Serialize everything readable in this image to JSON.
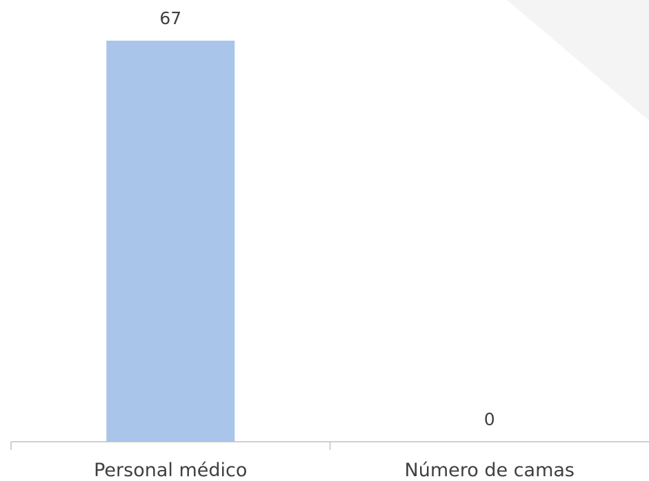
{
  "chart_data": {
    "type": "bar",
    "categories": [
      "Personal médico",
      "Número de camas"
    ],
    "values": [
      67,
      0
    ],
    "data_labels": [
      "67",
      "0"
    ],
    "title": "",
    "xlabel": "",
    "ylabel": "",
    "ylim": [
      0,
      67
    ],
    "grid": false,
    "legend": "none",
    "colors": {
      "bar": "#aac5ea",
      "axis": "#bfbfbf",
      "label": "#404040",
      "watermark": "#f4f4f4"
    }
  }
}
